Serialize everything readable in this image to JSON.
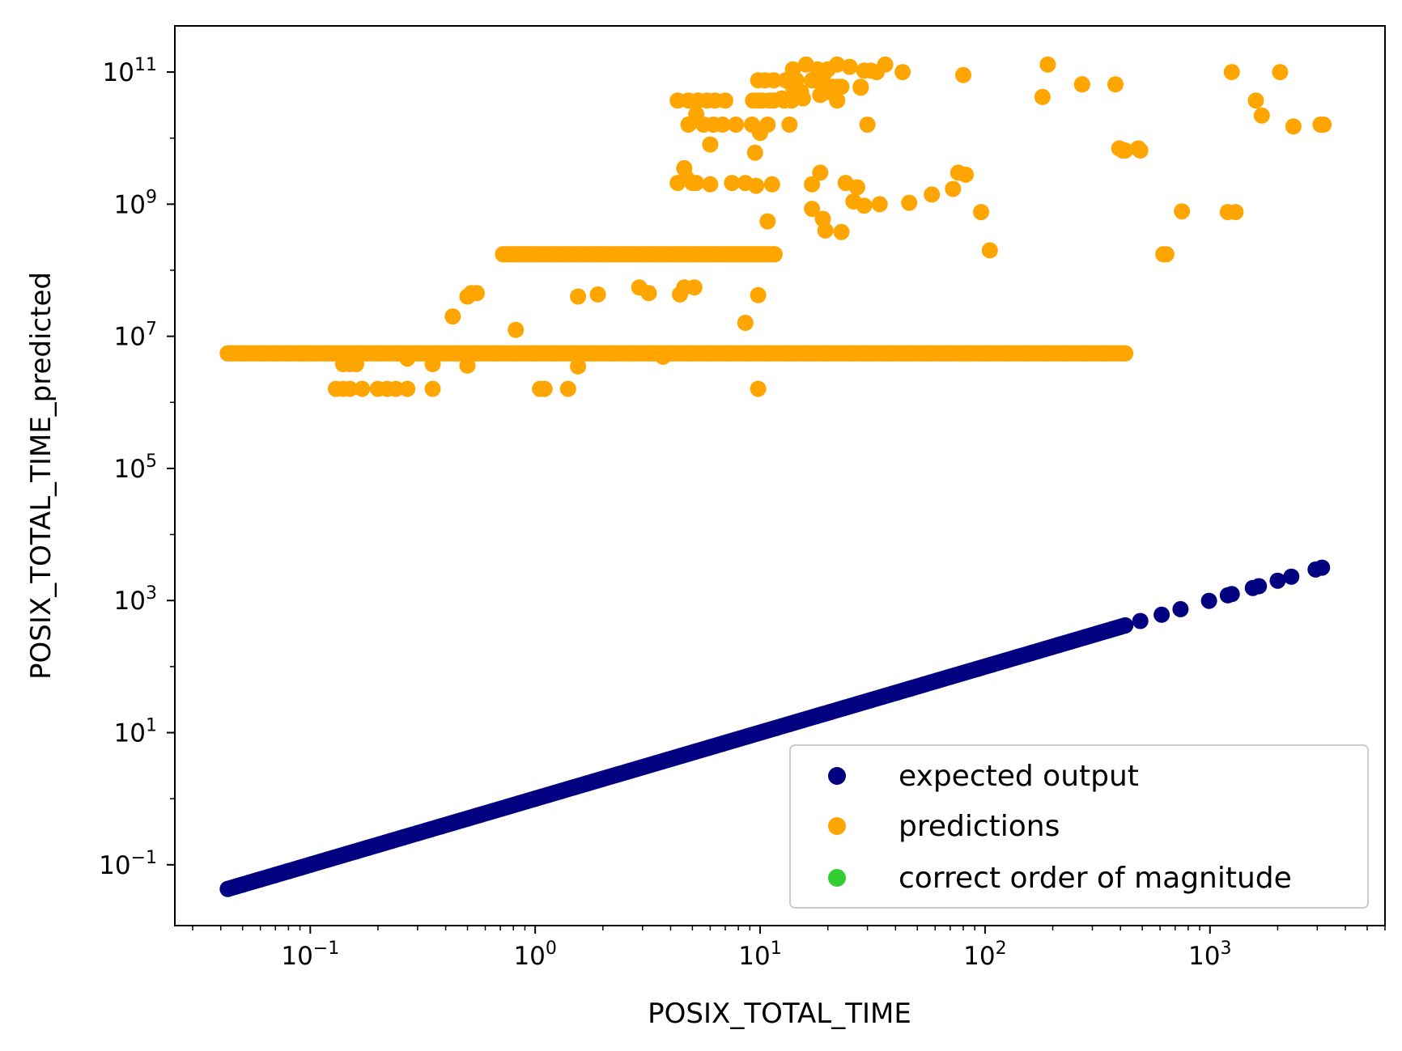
{
  "chart_data": {
    "type": "scatter",
    "xlabel": "POSIX_TOTAL_TIME",
    "ylabel": "POSIX_TOTAL_TIME_predicted",
    "xscale": "log",
    "yscale": "log",
    "xlim": [
      0.025,
      6000
    ],
    "ylim": [
      0.012,
      500000000000
    ],
    "x_ticks": [
      {
        "value": 0.1,
        "base": "10",
        "exp": "−1"
      },
      {
        "value": 1,
        "base": "10",
        "exp": "0"
      },
      {
        "value": 10,
        "base": "10",
        "exp": "1"
      },
      {
        "value": 100,
        "base": "10",
        "exp": "2"
      },
      {
        "value": 1000,
        "base": "10",
        "exp": "3"
      }
    ],
    "y_ticks": [
      {
        "value": 0.1,
        "base": "10",
        "exp": "−1"
      },
      {
        "value": 10,
        "base": "10",
        "exp": "1"
      },
      {
        "value": 1000,
        "base": "10",
        "exp": "3"
      },
      {
        "value": 100000,
        "base": "10",
        "exp": "5"
      },
      {
        "value": 10000000,
        "base": "10",
        "exp": "7"
      },
      {
        "value": 1000000000,
        "base": "10",
        "exp": "9"
      },
      {
        "value": 100000000000,
        "base": "10",
        "exp": "11"
      }
    ],
    "grid": false,
    "legend_position": "lower-right",
    "series": [
      {
        "name": "expected output",
        "color": "#000080",
        "x": [
          0.043,
          0.05,
          0.06,
          0.07,
          0.08,
          0.09,
          0.1,
          0.12,
          0.14,
          0.16,
          0.18,
          0.2,
          0.23,
          0.26,
          0.3,
          0.34,
          0.38,
          0.43,
          0.5,
          0.57,
          0.65,
          0.75,
          0.85,
          1.0,
          1.15,
          1.3,
          1.5,
          1.7,
          2.0,
          2.3,
          2.6,
          3.0,
          3.4,
          3.9,
          4.5,
          5.1,
          5.9,
          6.8,
          7.8,
          9.0,
          10.3,
          11.8,
          13.5,
          15.5,
          17.8,
          20.4,
          23.5,
          27,
          31,
          35.5,
          40.8,
          46.8,
          53.7,
          61.6,
          70.7,
          81.1,
          93,
          106.7,
          122.4,
          140.4,
          161,
          184.7,
          212,
          243,
          279,
          320,
          367,
          420,
          490,
          610,
          740,
          990,
          1200,
          1250,
          1550,
          1650,
          2000,
          2300,
          2950,
          3150
        ],
        "y": [
          0.043,
          0.05,
          0.06,
          0.07,
          0.08,
          0.09,
          0.1,
          0.12,
          0.14,
          0.16,
          0.18,
          0.2,
          0.23,
          0.26,
          0.3,
          0.34,
          0.38,
          0.43,
          0.5,
          0.57,
          0.65,
          0.75,
          0.85,
          1.0,
          1.15,
          1.3,
          1.5,
          1.7,
          2.0,
          2.3,
          2.6,
          3.0,
          3.4,
          3.9,
          4.5,
          5.1,
          5.9,
          6.8,
          7.8,
          9.0,
          10.3,
          11.8,
          13.5,
          15.5,
          17.8,
          20.4,
          23.5,
          27,
          31,
          35.5,
          40.8,
          46.8,
          53.7,
          61.6,
          70.7,
          81.1,
          93,
          106.7,
          122.4,
          140.4,
          161,
          184.7,
          212,
          243,
          279,
          320,
          367,
          420,
          490,
          610,
          740,
          990,
          1200,
          1250,
          1550,
          1650,
          2000,
          2300,
          2950,
          3150
        ]
      },
      {
        "name": "predictions",
        "color": "#ffa500",
        "x": [
          0.043,
          0.05,
          0.06,
          0.07,
          0.08,
          0.09,
          0.1,
          0.12,
          0.14,
          0.17,
          0.2,
          0.25,
          0.3,
          0.37,
          0.45,
          0.55,
          0.67,
          0.8,
          1.0,
          1.2,
          1.5,
          1.8,
          2.2,
          2.7,
          3.3,
          4.0,
          4.9,
          6.0,
          7.3,
          9.0,
          11,
          13.5,
          16.5,
          20,
          25,
          30,
          37,
          45,
          55,
          67,
          82,
          100,
          125,
          150,
          185,
          225,
          275,
          340,
          420,
          0.13,
          0.14,
          0.15,
          0.17,
          0.2,
          0.22,
          0.24,
          0.27,
          0.35,
          1.05,
          1.1,
          1.4,
          9.8,
          0.14,
          0.15,
          0.16,
          0.27,
          0.35,
          0.5,
          1.55,
          3.7,
          0.43,
          0.5,
          0.52,
          0.55,
          0.82,
          1.55,
          1.9,
          2.9,
          3.2,
          4.4,
          4.6,
          5.1,
          8.6,
          9.8,
          0.72,
          0.8,
          0.9,
          1.0,
          1.2,
          1.4,
          1.6,
          1.8,
          2.0,
          2.3,
          2.6,
          3.0,
          3.4,
          3.8,
          4.2,
          4.6,
          5.0,
          5.5,
          6.0,
          6.6,
          7.2,
          7.8,
          8.4,
          9.0,
          9.6,
          10.2,
          11.0,
          11.6,
          620,
          640,
          4.3,
          4.6,
          5.2,
          7.5,
          8.6,
          9.6,
          11.3,
          4.7,
          5.0,
          6.0,
          10.8,
          17,
          19,
          23,
          24,
          26,
          29,
          34,
          46,
          58,
          72,
          76,
          82,
          17,
          18.5,
          19.5,
          27,
          105,
          96,
          750,
          1200,
          1300,
          1600,
          4.3,
          4.8,
          5.3,
          5.8,
          6.3,
          7.0,
          9.3,
          10.2,
          11.5,
          12.8,
          13.8,
          15.2,
          20,
          28,
          30,
          4.8,
          5.2,
          5.6,
          6.2,
          6.8,
          7.8,
          9.2,
          10,
          10.8,
          13.5,
          17.5,
          9.8,
          10.5,
          11.5,
          13,
          14.5,
          17,
          19,
          22,
          9.8,
          11,
          12.5,
          14,
          15.5,
          18.5,
          21,
          22,
          23,
          28,
          36,
          14,
          16,
          18,
          19,
          20,
          22,
          25,
          29,
          31,
          33,
          43,
          80,
          180,
          190,
          270,
          270,
          380,
          1250,
          2050,
          1700,
          2350,
          3100,
          3200,
          6,
          9.5,
          395,
          410,
          420,
          480,
          490
        ],
        "y": [
          5500000,
          5500000,
          5500000,
          5500000,
          5500000,
          5500000,
          5500000,
          5500000,
          5500000,
          5500000,
          5500000,
          5500000,
          5500000,
          5500000,
          5500000,
          5500000,
          5500000,
          5500000,
          5500000,
          5500000,
          5500000,
          5500000,
          5500000,
          5500000,
          5500000,
          5500000,
          5500000,
          5500000,
          5500000,
          5500000,
          5500000,
          5500000,
          5500000,
          5500000,
          5500000,
          5500000,
          5500000,
          5500000,
          5500000,
          5500000,
          5500000,
          5500000,
          5500000,
          5500000,
          5500000,
          5500000,
          5500000,
          5500000,
          5500000,
          1600000,
          1600000,
          1600000,
          1600000,
          1600000,
          1600000,
          1600000,
          1600000,
          1600000,
          1600000,
          1600000,
          1600000,
          1600000,
          3800000,
          3800000,
          3800000,
          4600000,
          3800000,
          3600000,
          3500000,
          4900000,
          20000000,
          40000000,
          45000000,
          45000000,
          12500000,
          40000000,
          43000000,
          55000000,
          45000000,
          43000000,
          55000000,
          55000000,
          16000000,
          42000000,
          175000000,
          175000000,
          175000000,
          175000000,
          175000000,
          175000000,
          175000000,
          175000000,
          175000000,
          175000000,
          175000000,
          175000000,
          175000000,
          175000000,
          175000000,
          175000000,
          175000000,
          175000000,
          175000000,
          175000000,
          175000000,
          175000000,
          175000000,
          175000000,
          175000000,
          175000000,
          175000000,
          175000000,
          175000000,
          175000000,
          2100000000,
          3500000000,
          2100000000,
          2100000000,
          2100000000,
          1900000000,
          2000000000,
          2500000000,
          2100000000,
          2000000000,
          550000000,
          850000000,
          600000000,
          380000000,
          2100000000,
          1100000000,
          950000000,
          1000000000,
          1050000000,
          1400000000,
          1700000000,
          3000000000,
          2800000000,
          2000000000,
          3000000000,
          400000000,
          1800000000,
          200000000,
          760000000,
          780000000,
          760000000,
          760000000,
          37000000000,
          37000000000,
          37000000000,
          37000000000,
          37000000000,
          37000000000,
          37000000000,
          37000000000,
          37000000000,
          37000000000,
          37000000000,
          37000000000,
          50000000000,
          50000000000,
          58000000000,
          16000000000,
          16000000000,
          23000000000,
          16000000000,
          16000000000,
          16000000000,
          16000000000,
          16000000000,
          12000000000,
          16000000000,
          16000000000,
          75000000000,
          75000000000,
          75000000000,
          75000000000,
          75000000000,
          75000000000,
          75000000000,
          75000000000,
          37000000000,
          37000000000,
          37000000000,
          40000000000,
          60000000000,
          40000000000,
          45000000000,
          60000000000,
          60000000000,
          60000000000,
          60000000000,
          130000000000,
          110000000000,
          130000000000,
          110000000000,
          85000000000,
          110000000000,
          130000000000,
          120000000000,
          105000000000,
          105000000000,
          100000000000,
          100000000000,
          90000000000,
          42000000000,
          130000000000,
          65000000000,
          65000000000,
          65000000000,
          100000000000,
          100000000000,
          22000000000,
          15000000000,
          16000000000,
          16000000000,
          8000000000,
          6000000000,
          7000000000,
          6500000000,
          6500000000,
          7000000000,
          6500000000
        ]
      },
      {
        "name": "correct order of magnitude",
        "color": "#32cd32",
        "x": [],
        "y": []
      }
    ]
  }
}
